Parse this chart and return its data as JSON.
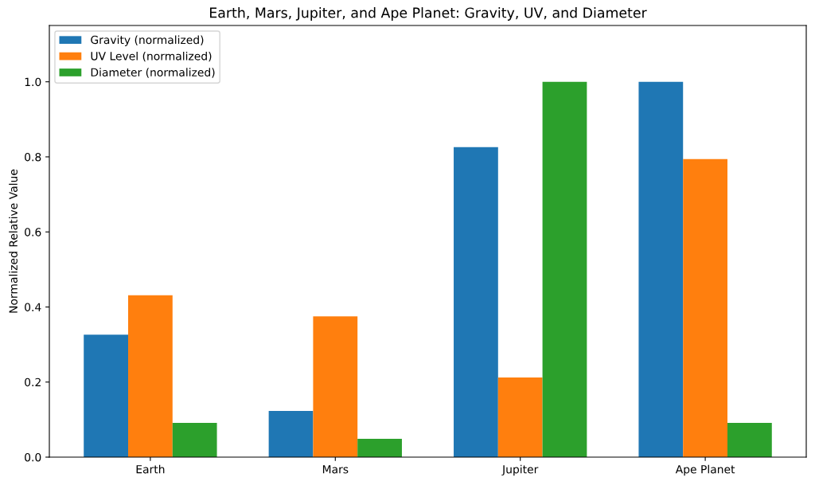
{
  "chart_data": {
    "type": "bar",
    "title": "Earth, Mars, Jupiter, and Ape Planet: Gravity, UV, and Diameter",
    "ylabel": "Normalized Relative Value",
    "categories": [
      "Earth",
      "Mars",
      "Jupiter",
      "Ape Planet"
    ],
    "series": [
      {
        "name": "Gravity (normalized)",
        "color": "#1f77b4",
        "values": [
          0.326,
          0.123,
          0.826,
          1.0
        ]
      },
      {
        "name": "UV Level (normalized)",
        "color": "#ff7f0e",
        "values": [
          0.431,
          0.375,
          0.212,
          0.794
        ]
      },
      {
        "name": "Diameter (normalized)",
        "color": "#2ca02c",
        "values": [
          0.091,
          0.049,
          1.0,
          0.091
        ]
      }
    ],
    "ylim": [
      0,
      1.15
    ],
    "yticks": [
      {
        "value": 0,
        "label": "0.0"
      },
      0.2,
      0.4,
      0.6,
      0.8,
      {
        "value": 1,
        "label": "1.0"
      }
    ],
    "legend": "top left",
    "grid": false
  }
}
